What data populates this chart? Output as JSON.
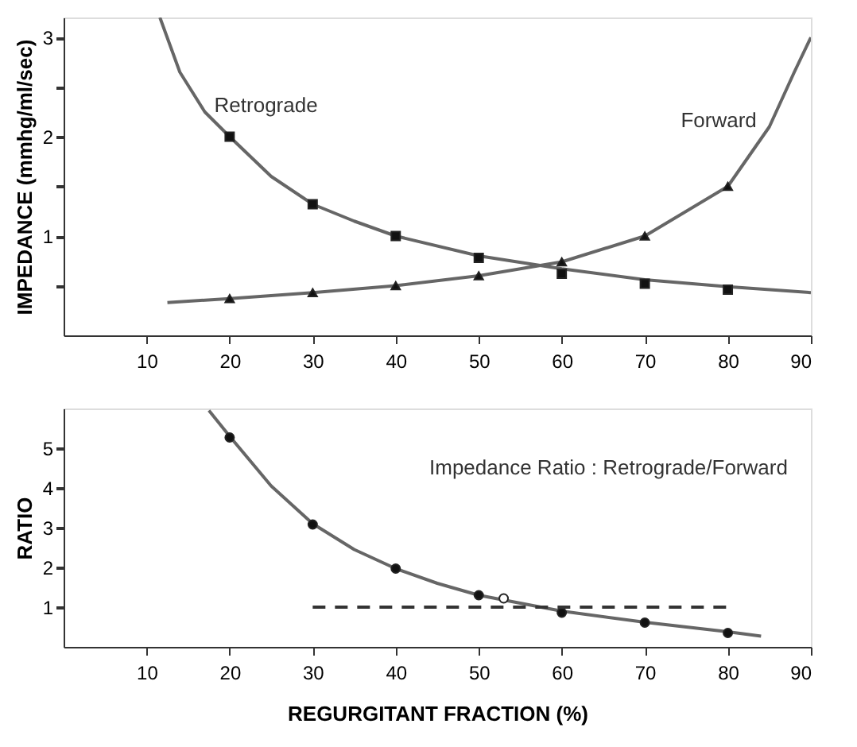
{
  "chart_data": [
    {
      "type": "line",
      "ylabel": "IMPEDANCE (mmhg/ml/sec)",
      "xlim": [
        0,
        90
      ],
      "xticks": [
        10,
        20,
        30,
        40,
        50,
        60,
        70,
        80,
        90
      ],
      "ylim": [
        0,
        3.2
      ],
      "yticks": [
        {
          "value": 0.5,
          "label": null
        },
        1,
        {
          "value": 1.5,
          "label": null
        },
        2,
        {
          "value": 2.5,
          "label": null
        },
        3
      ],
      "grid": false,
      "series": [
        {
          "name": "Retrograde",
          "color": "#666666",
          "marker": "none",
          "x": [
            11.6,
            14,
            17,
            20,
            25,
            30,
            35,
            40,
            50,
            60,
            70,
            80,
            90
          ],
          "values": [
            3.2,
            2.65,
            2.25,
            2.0,
            1.6,
            1.32,
            1.15,
            1.0,
            0.8,
            0.67,
            0.56,
            0.49,
            0.43
          ]
        },
        {
          "type": "scatter",
          "color": "#111111",
          "marker": "square",
          "x": [
            20,
            30,
            40,
            50,
            60,
            70,
            80
          ],
          "values": [
            2.0,
            1.32,
            1.0,
            0.78,
            0.62,
            0.52,
            0.46
          ]
        },
        {
          "name": "Forward",
          "color": "#666666",
          "marker": "none",
          "x": [
            12.5,
            20,
            30,
            40,
            50,
            60,
            70,
            80,
            85,
            88,
            90
          ],
          "values": [
            0.33,
            0.37,
            0.43,
            0.5,
            0.6,
            0.74,
            1.0,
            1.5,
            2.1,
            2.65,
            3.0
          ]
        },
        {
          "type": "scatter",
          "color": "#111111",
          "marker": "triangle",
          "x": [
            20,
            30,
            40,
            50,
            60,
            70,
            80
          ],
          "values": [
            0.37,
            0.43,
            0.5,
            0.6,
            0.74,
            1.0,
            1.5
          ]
        }
      ]
    },
    {
      "type": "line",
      "ylabel": "RATIO",
      "xlabel": "REGURGITANT FRACTION (%)",
      "xlim": [
        0,
        90
      ],
      "xticks": [
        10,
        20,
        30,
        40,
        50,
        60,
        70,
        80,
        90
      ],
      "ylim": [
        0,
        6
      ],
      "yticks": [
        1,
        2,
        3,
        4,
        5
      ],
      "grid": false,
      "annotations": [
        "Impedance Ratio : Retrograde/Forward"
      ],
      "series": [
        {
          "color": "#666666",
          "marker": "none",
          "x": [
            17.5,
            20,
            25,
            30,
            35,
            40,
            45,
            50,
            55,
            60,
            70,
            80,
            84
          ],
          "values": [
            5.95,
            5.3,
            4.05,
            3.1,
            2.45,
            1.97,
            1.6,
            1.3,
            1.1,
            0.9,
            0.62,
            0.38,
            0.27
          ]
        },
        {
          "type": "scatter",
          "color": "#111111",
          "marker": "circle",
          "x": [
            20,
            30,
            40,
            50,
            60,
            70,
            80
          ],
          "values": [
            5.27,
            3.08,
            1.97,
            1.3,
            0.86,
            0.61,
            0.35
          ]
        },
        {
          "type": "scatter",
          "color": "#ffffff",
          "marker": "circle",
          "x": [
            53
          ],
          "values": [
            1.22
          ]
        },
        {
          "color": "#333333",
          "marker": "none",
          "line_style": "dashed",
          "x": [
            30,
            80
          ],
          "values": [
            1,
            1
          ]
        }
      ]
    }
  ]
}
